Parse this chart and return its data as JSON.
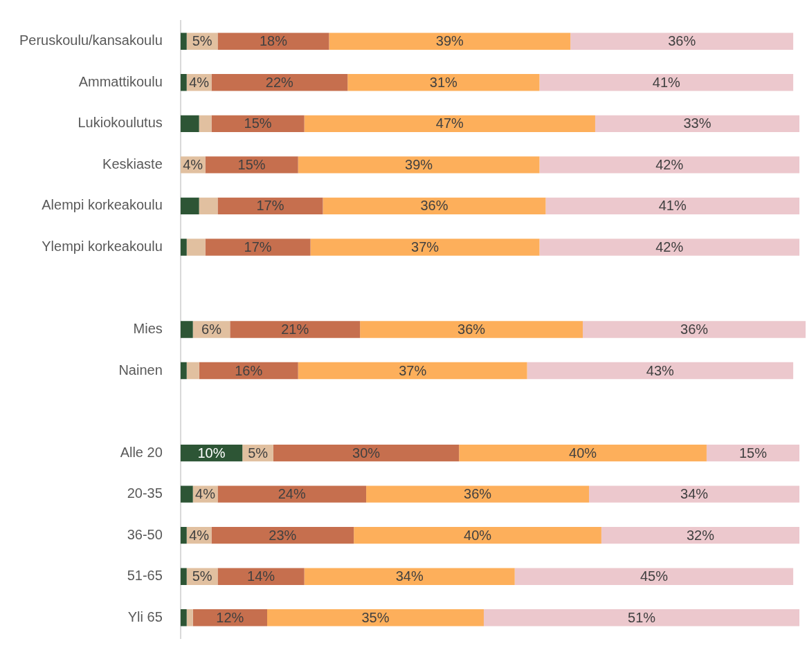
{
  "chart_data": {
    "type": "bar",
    "orientation": "horizontal",
    "stacked": true,
    "categories": [
      "Peruskoulu/kansakoulu",
      "Ammattikoulu",
      "Lukiokoulutus",
      "Keskiaste",
      "Alempi korkeakoulu",
      "Ylempi korkeakoulu",
      null,
      "Mies",
      "Nainen",
      null,
      "Alle 20",
      "20-35",
      "36-50",
      "51-65",
      "Yli 65"
    ],
    "series": [
      {
        "color": "#2d5535",
        "values": [
          1,
          1,
          3,
          0,
          3,
          1,
          null,
          2,
          1,
          null,
          10,
          2,
          1,
          1,
          1
        ],
        "value_labels": [
          null,
          null,
          null,
          null,
          null,
          null,
          null,
          null,
          null,
          null,
          "10%",
          null,
          null,
          null,
          null
        ]
      },
      {
        "color": "#e1c0a0",
        "values": [
          5,
          4,
          2,
          4,
          3,
          3,
          null,
          6,
          2,
          null,
          5,
          4,
          4,
          5,
          1
        ],
        "value_labels": [
          "5%",
          "4%",
          null,
          "4%",
          null,
          null,
          null,
          "6%",
          null,
          null,
          "5%",
          "4%",
          "4%",
          "5%",
          null
        ]
      },
      {
        "color": "#c66f4e",
        "values": [
          18,
          22,
          15,
          15,
          17,
          17,
          null,
          21,
          16,
          null,
          30,
          24,
          23,
          14,
          12
        ],
        "value_labels": [
          "18%",
          "22%",
          "15%",
          "15%",
          "17%",
          "17%",
          null,
          "21%",
          "16%",
          null,
          "30%",
          "24%",
          "23%",
          "14%",
          "12%"
        ]
      },
      {
        "color": "#fdaf5b",
        "values": [
          39,
          31,
          47,
          39,
          36,
          37,
          null,
          36,
          37,
          null,
          40,
          36,
          40,
          34,
          35
        ],
        "value_labels": [
          "39%",
          "31%",
          "47%",
          "39%",
          "36%",
          "37%",
          null,
          "36%",
          "37%",
          null,
          "40%",
          "36%",
          "40%",
          "34%",
          "35%"
        ]
      },
      {
        "color": "#ecc8cd",
        "values": [
          36,
          41,
          33,
          42,
          41,
          42,
          null,
          36,
          43,
          null,
          15,
          34,
          32,
          45,
          51
        ],
        "value_labels": [
          "36%",
          "41%",
          "33%",
          "42%",
          "41%",
          "42%",
          null,
          "36%",
          "43%",
          null,
          "15%",
          "34%",
          "32%",
          "45%",
          "51%"
        ]
      }
    ],
    "legend": false
  }
}
